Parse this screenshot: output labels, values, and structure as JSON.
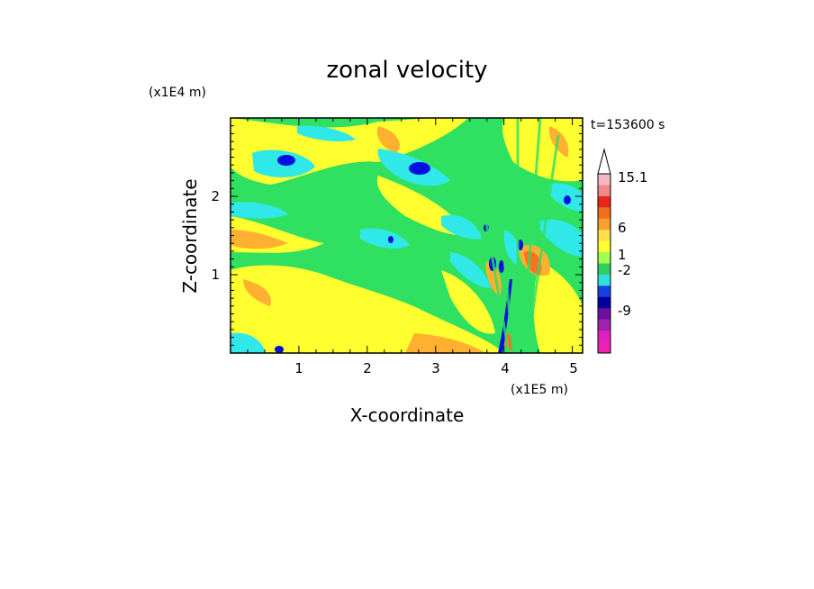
{
  "chart_data": {
    "type": "heatmap",
    "title": "zonal velocity",
    "xlabel": "X-coordinate",
    "ylabel": "Z-coordinate",
    "x_unit": "(x1E5 m)",
    "y_unit": "(x1E4 m)",
    "time_label": "t=153600 s",
    "xlim": [
      0,
      5.15
    ],
    "ylim": [
      0,
      3.0
    ],
    "x_ticks": [
      "1",
      "2",
      "3",
      "4",
      "5"
    ],
    "y_ticks": [
      "1",
      "2"
    ],
    "colorbar": {
      "labels": [
        "15.1",
        "6",
        "1",
        "-2",
        "-9"
      ],
      "colors": [
        "#f5b8c4",
        "#f08a8a",
        "#e8281e",
        "#f07020",
        "#f5a030",
        "#ffe04a",
        "#ffff30",
        "#a0ff50",
        "#30d060",
        "#30e0e0",
        "#1840e0",
        "#0000a0",
        "#7010a0",
        "#a020b0",
        "#e020c0",
        "#f020b0"
      ]
    },
    "palette": {
      "orange": "#ffb030",
      "yellow": "#ffff30",
      "green": "#30e060",
      "cyan": "#30e8e8",
      "blue": "#0010e0",
      "red": "#ff7020"
    }
  }
}
